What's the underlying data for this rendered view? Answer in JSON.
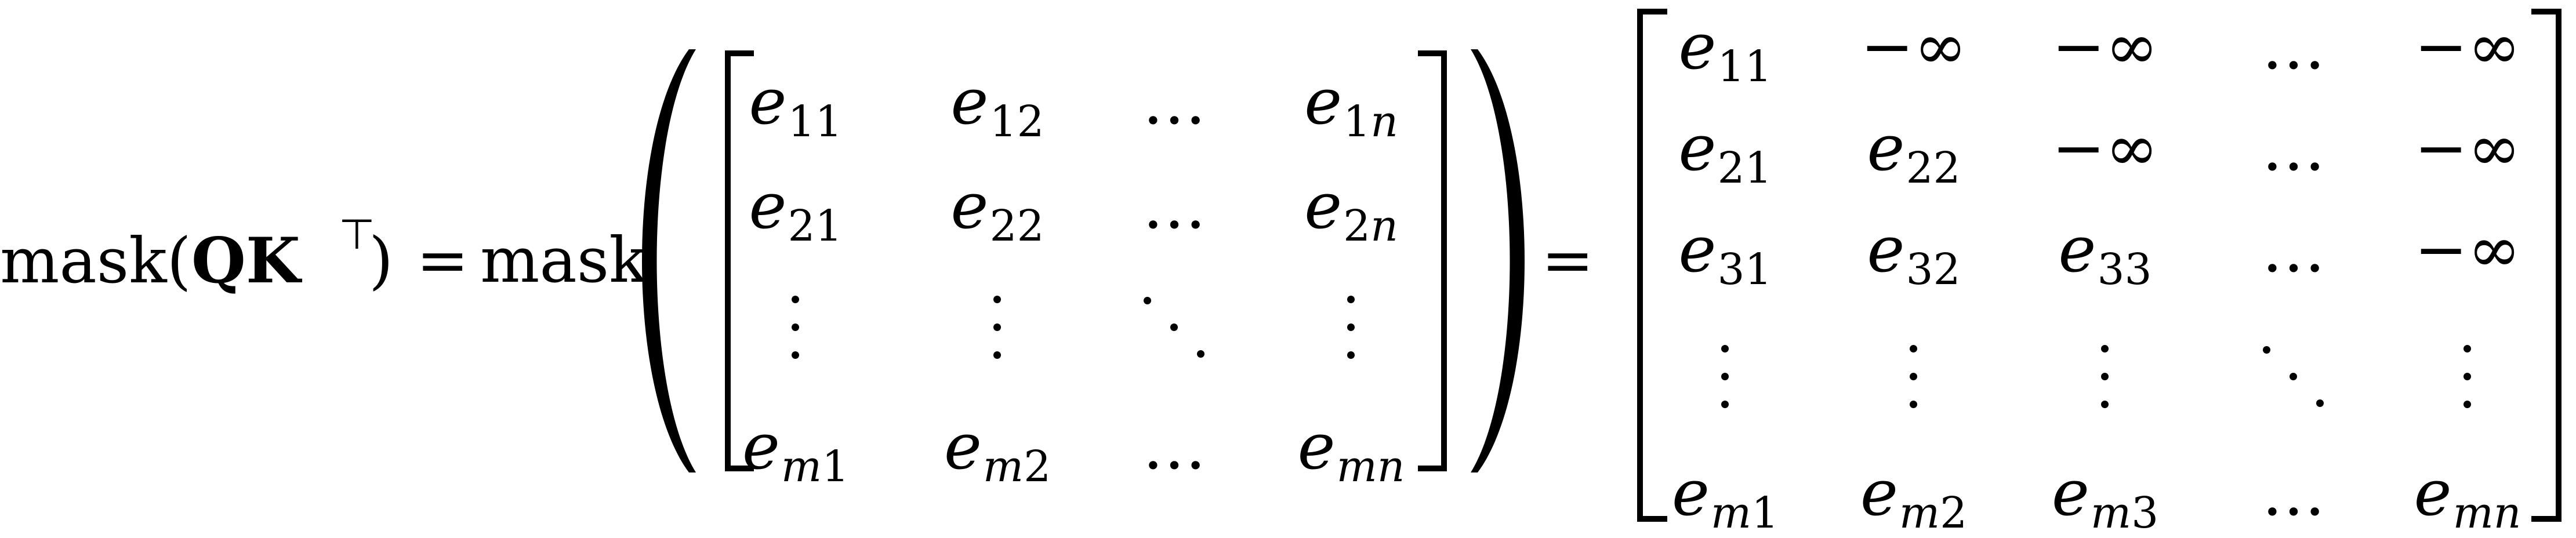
{
  "lhs": {
    "func": "mask",
    "open_paren": "(",
    "q": "Q",
    "k": "K",
    "transpose": "⊤",
    "close_paren": ")",
    "equals": "=",
    "func2": "mask"
  },
  "middle_matrix": {
    "rows": [
      [
        {
          "b": "e",
          "s": "11"
        },
        {
          "b": "e",
          "s": "12"
        },
        {
          "t": "…"
        },
        {
          "b": "e",
          "s": "1n"
        }
      ],
      [
        {
          "b": "e",
          "s": "21"
        },
        {
          "b": "e",
          "s": "22"
        },
        {
          "t": "…"
        },
        {
          "b": "e",
          "s": "2n"
        }
      ],
      [
        {
          "t": "vdots"
        },
        {
          "t": "vdots"
        },
        {
          "t": "ddots"
        },
        {
          "t": "vdots"
        }
      ],
      [
        {
          "b": "e",
          "s": "m1"
        },
        {
          "b": "e",
          "s": "m2"
        },
        {
          "t": "…"
        },
        {
          "b": "e",
          "s": "mn"
        }
      ]
    ]
  },
  "equals2": "=",
  "result_matrix": {
    "rows": [
      [
        {
          "b": "e",
          "s": "11"
        },
        {
          "t": "−∞"
        },
        {
          "t": "−∞"
        },
        {
          "t": "…"
        },
        {
          "t": "−∞"
        }
      ],
      [
        {
          "b": "e",
          "s": "21"
        },
        {
          "b": "e",
          "s": "22"
        },
        {
          "t": "−∞"
        },
        {
          "t": "…"
        },
        {
          "t": "−∞"
        }
      ],
      [
        {
          "b": "e",
          "s": "31"
        },
        {
          "b": "e",
          "s": "32"
        },
        {
          "b": "e",
          "s": "33"
        },
        {
          "t": "…"
        },
        {
          "t": "−∞"
        }
      ],
      [
        {
          "t": "vdots"
        },
        {
          "t": "vdots"
        },
        {
          "t": "vdots"
        },
        {
          "t": "ddots"
        },
        {
          "t": "vdots"
        }
      ],
      [
        {
          "b": "e",
          "s": "m1"
        },
        {
          "b": "e",
          "s": "m2"
        },
        {
          "b": "e",
          "s": "m3"
        },
        {
          "t": "…"
        },
        {
          "b": "e",
          "s": "mn"
        }
      ]
    ]
  }
}
